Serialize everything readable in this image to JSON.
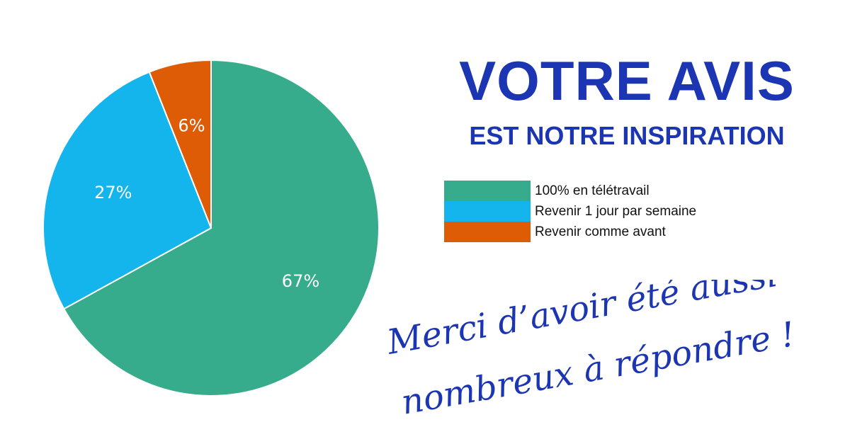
{
  "colors": {
    "title": "#1b35b3",
    "handwriting": "#1b35b3"
  },
  "title": "VOTRE AVIS",
  "subtitle": "EST NOTRE INSPIRATION",
  "thanks": {
    "line1": "Merci d’avoir été aussi",
    "line2": "nombreux à répondre !"
  },
  "chart_data": {
    "type": "pie",
    "slices": [
      {
        "label": "100% en télétravail",
        "value": 67,
        "display": "67%",
        "color": "#36ac8c"
      },
      {
        "label": "Revenir 1 jour par semaine",
        "value": 27,
        "display": "27%",
        "color": "#14b4ec"
      },
      {
        "label": "Revenir comme avant",
        "value": 6,
        "display": "6%",
        "color": "#dd5c05"
      }
    ],
    "legend": "right"
  }
}
